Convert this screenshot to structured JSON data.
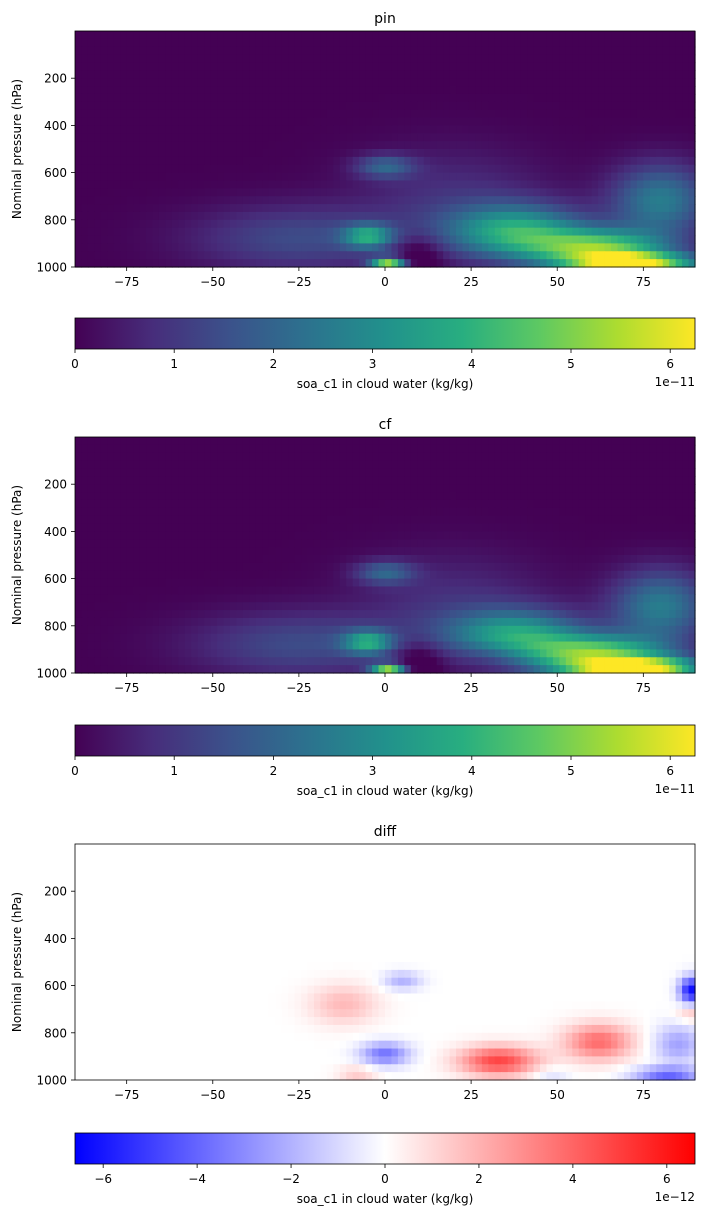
{
  "chart_data": [
    {
      "type": "heatmap",
      "title": "pin",
      "xlabel": "",
      "ylabel": "Nominal pressure (hPa)",
      "xlim": [
        -90,
        90
      ],
      "ylim": [
        1000,
        0
      ],
      "xticks": [
        -75,
        -50,
        -25,
        0,
        25,
        50,
        75
      ],
      "xtick_labels": [
        "−75",
        "−50",
        "−25",
        "0",
        "25",
        "50",
        "75"
      ],
      "yticks": [
        200,
        400,
        600,
        800,
        1000
      ],
      "ytick_labels": [
        "200",
        "400",
        "600",
        "800",
        "1000"
      ],
      "colormap": "viridis",
      "colorbar": {
        "label": "soa_c1 in cloud water (kg/kg)",
        "range": [
          0,
          6.25
        ],
        "ticks": [
          0,
          1,
          2,
          3,
          4,
          5,
          6
        ],
        "tick_labels": [
          "0",
          "1",
          "2",
          "3",
          "4",
          "5",
          "6"
        ],
        "offset": "1e−11"
      },
      "description_values": "Near zero above 500 hPa; maxima of ~6e-11 near the surface at 60-90N, secondary ~4-5e-11 at 0N near 950 hPa"
    },
    {
      "type": "heatmap",
      "title": "cf",
      "xlabel": "",
      "ylabel": "Nominal pressure (hPa)",
      "xlim": [
        -90,
        90
      ],
      "ylim": [
        1000,
        0
      ],
      "xticks": [
        -75,
        -50,
        -25,
        0,
        25,
        50,
        75
      ],
      "xtick_labels": [
        "−75",
        "−50",
        "−25",
        "0",
        "25",
        "50",
        "75"
      ],
      "yticks": [
        200,
        400,
        600,
        800,
        1000
      ],
      "ytick_labels": [
        "200",
        "400",
        "600",
        "800",
        "1000"
      ],
      "colormap": "viridis",
      "colorbar": {
        "label": "soa_c1 in cloud water (kg/kg)",
        "range": [
          0,
          6.25
        ],
        "ticks": [
          0,
          1,
          2,
          3,
          4,
          5,
          6
        ],
        "tick_labels": [
          "0",
          "1",
          "2",
          "3",
          "4",
          "5",
          "6"
        ],
        "offset": "1e−11"
      }
    },
    {
      "type": "heatmap",
      "title": "diff",
      "xlabel": "",
      "ylabel": "Nominal pressure (hPa)",
      "xlim": [
        -90,
        90
      ],
      "ylim": [
        1000,
        0
      ],
      "xticks": [
        -75,
        -50,
        -25,
        0,
        25,
        50,
        75
      ],
      "xtick_labels": [
        "−75",
        "−50",
        "−25",
        "0",
        "25",
        "50",
        "75"
      ],
      "yticks": [
        200,
        400,
        600,
        800,
        1000
      ],
      "ytick_labels": [
        "200",
        "400",
        "600",
        "800",
        "1000"
      ],
      "colormap": "bwr",
      "colorbar": {
        "label": "soa_c1 in cloud water (kg/kg)",
        "range": [
          -6.6,
          6.6
        ],
        "ticks": [
          -6,
          -4,
          -2,
          0,
          2,
          4,
          6
        ],
        "tick_labels": [
          "−6",
          "−4",
          "−2",
          "0",
          "2",
          "4",
          "6"
        ],
        "offset": "1e−12"
      }
    }
  ]
}
